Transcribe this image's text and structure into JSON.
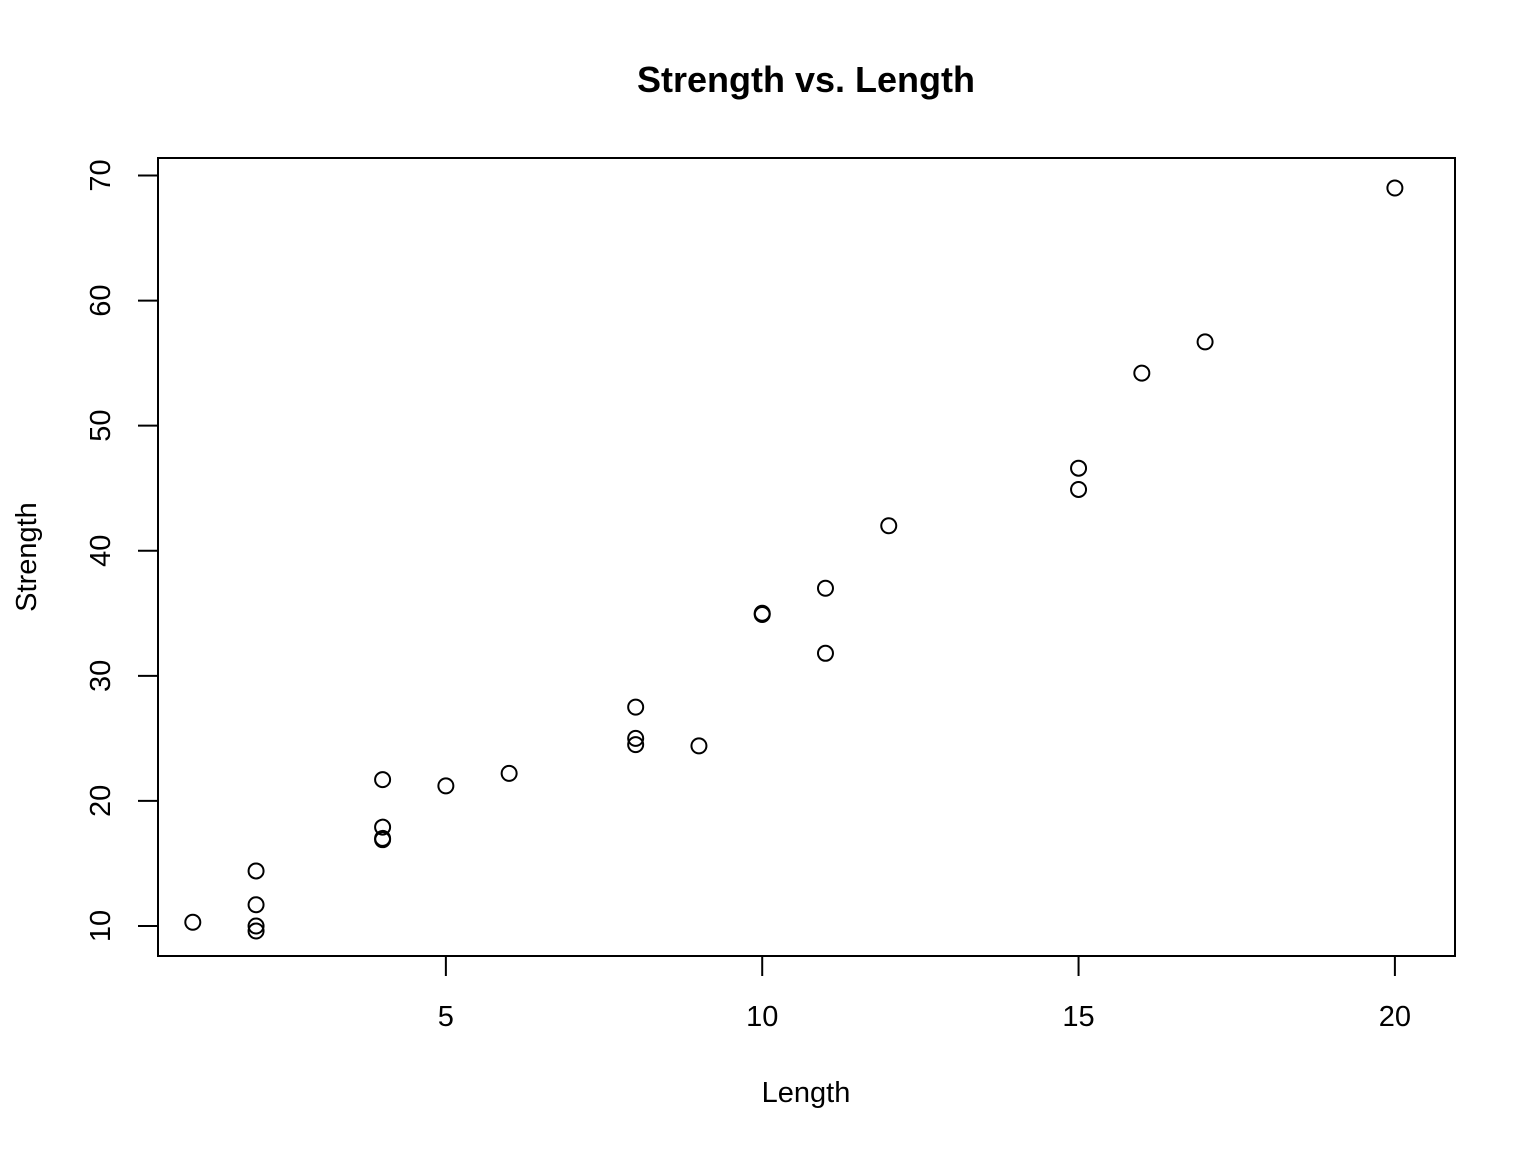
{
  "chart_data": {
    "type": "scatter",
    "title": "Strength vs. Length",
    "xlabel": "Length",
    "ylabel": "Strength",
    "xlim": [
      0.45,
      20.95
    ],
    "ylim": [
      7.6,
      71.4
    ],
    "x_ticks": [
      5,
      10,
      15,
      20
    ],
    "y_ticks": [
      10,
      20,
      30,
      40,
      50,
      60,
      70
    ],
    "grid": false,
    "legend": "none",
    "point_style": "open-circle",
    "colors": {
      "point": "#000000",
      "axes": "#000000",
      "background": "#ffffff"
    },
    "points": [
      {
        "x": 1,
        "y": 10.3
      },
      {
        "x": 2,
        "y": 14.4
      },
      {
        "x": 2,
        "y": 11.7
      },
      {
        "x": 2,
        "y": 10.0
      },
      {
        "x": 2,
        "y": 9.6
      },
      {
        "x": 4,
        "y": 21.7
      },
      {
        "x": 4,
        "y": 17.9
      },
      {
        "x": 4,
        "y": 17.0
      },
      {
        "x": 4,
        "y": 16.9
      },
      {
        "x": 5,
        "y": 21.2
      },
      {
        "x": 6,
        "y": 22.2
      },
      {
        "x": 8,
        "y": 27.5
      },
      {
        "x": 8,
        "y": 25.0
      },
      {
        "x": 8,
        "y": 24.5
      },
      {
        "x": 9,
        "y": 24.4
      },
      {
        "x": 10,
        "y": 35.0
      },
      {
        "x": 10,
        "y": 34.9
      },
      {
        "x": 11,
        "y": 37.0
      },
      {
        "x": 11,
        "y": 31.8
      },
      {
        "x": 12,
        "y": 42.0
      },
      {
        "x": 15,
        "y": 46.6
      },
      {
        "x": 15,
        "y": 44.9
      },
      {
        "x": 16,
        "y": 54.2
      },
      {
        "x": 17,
        "y": 56.7
      },
      {
        "x": 20,
        "y": 69.0
      }
    ]
  }
}
